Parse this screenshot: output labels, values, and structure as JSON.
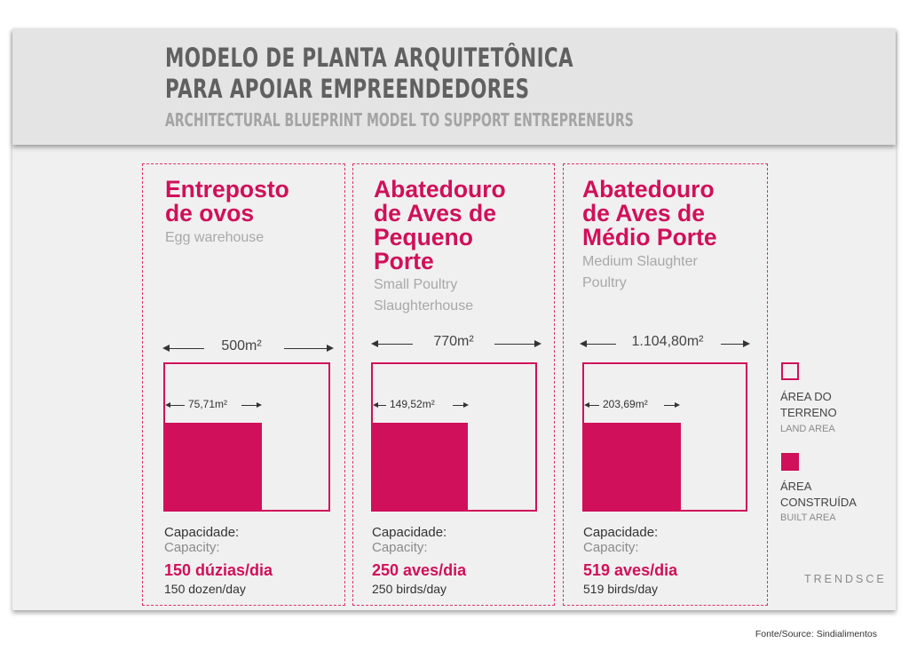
{
  "header": {
    "title_line1": "MODELO DE PLANTA ARQUITETÔNICA",
    "title_line2": "PARA APOIAR EMPREENDEDORES",
    "subtitle": "ARCHITECTURAL BLUEPRINT MODEL TO SUPPORT ENTREPRENEURS"
  },
  "columns": [
    {
      "title_lines": [
        "Entreposto",
        "de ovos"
      ],
      "subtitle_lines": [
        "Egg warehouse"
      ],
      "land_area": "500m²",
      "built_area": "75,71m²",
      "capacity_label_pt": "Capacidade:",
      "capacity_label_en": "Capacity:",
      "capacity_value": "150 dúzias/dia",
      "capacity_en": "150 dozen/day"
    },
    {
      "title_lines": [
        "Abatedouro",
        "de Aves de",
        "Pequeno",
        "Porte"
      ],
      "subtitle_lines": [
        "Small Poultry",
        "Slaughterhouse"
      ],
      "land_area": "770m²",
      "built_area": "149,52m²",
      "capacity_label_pt": "Capacidade:",
      "capacity_label_en": "Capacity:",
      "capacity_value": "250 aves/dia",
      "capacity_en": "250 birds/day"
    },
    {
      "title_lines": [
        "Abatedouro",
        "de Aves de",
        "Médio Porte"
      ],
      "subtitle_lines": [
        "Medium Slaughter",
        "Poultry"
      ],
      "land_area": "1.104,80m²",
      "built_area": "203,69m²",
      "capacity_label_pt": "Capacidade:",
      "capacity_label_en": "Capacity:",
      "capacity_value": "519 aves/dia",
      "capacity_en": "519 birds/day"
    }
  ],
  "legend": {
    "land_pt_1": "ÁREA DO",
    "land_pt_2": "TERRENO",
    "land_en": "LAND AREA",
    "built_pt_1": "ÁREA",
    "built_pt_2": "CONSTRUÍDA",
    "built_en": "BUILT AREA"
  },
  "logo": "TRENDSCE",
  "source": "Fonte/Source: Sindialimentos",
  "colors": {
    "accent": "#d0105a",
    "header_bg": "#e4e4e4",
    "card_bg": "#f0f0f0"
  }
}
